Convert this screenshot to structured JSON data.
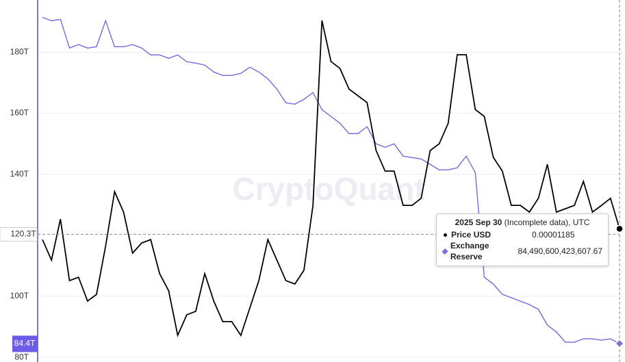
{
  "chart_data": {
    "type": "line",
    "watermark": "CryptoQuant",
    "ylim": [
      78.9,
      197.1
    ],
    "yticks": [
      {
        "value": 80,
        "label": "80T"
      },
      {
        "value": 100,
        "label": "100T"
      },
      {
        "value": 140,
        "label": "140T"
      },
      {
        "value": 160,
        "label": "160T"
      },
      {
        "value": 180,
        "label": "180T"
      }
    ],
    "y2lim": [
      6e-06,
      2.2e-05
    ],
    "grid": true,
    "crosshair_y": {
      "value": 120.3,
      "label": "120.3T"
    },
    "last_y": {
      "value": 84.4,
      "label": "84.4T"
    },
    "tooltip": {
      "date": "2025 Sep 30",
      "note": "(Incomplete data), UTC"
    },
    "series": [
      {
        "name": "Price USD",
        "color": "#000000",
        "axis": "y2",
        "values": [
          1.137e-05,
          1.046e-05,
          1.228e-05,
          9.55e-06,
          9.7e-06,
          8.64e-06,
          8.94e-06,
          1.107e-05,
          1.35e-05,
          1.259e-05,
          1.077e-05,
          1.122e-05,
          1.137e-05,
          9.86e-06,
          9.1e-06,
          7.12e-06,
          8.03e-06,
          8.19e-06,
          9.86e-06,
          8.64e-06,
          7.73e-06,
          7.73e-06,
          7.12e-06,
          8.34e-06,
          9.55e-06,
          1.137e-05,
          1.046e-05,
          9.55e-06,
          9.4e-06,
          1.001e-05,
          1.289e-05,
          2.109e-05,
          1.927e-05,
          1.896e-05,
          1.805e-05,
          1.775e-05,
          1.745e-05,
          1.532e-05,
          1.441e-05,
          1.441e-05,
          1.289e-05,
          1.289e-05,
          1.32e-05,
          1.532e-05,
          1.562e-05,
          1.653e-05,
          1.957e-05,
          1.957e-05,
          1.714e-05,
          1.684e-05,
          1.502e-05,
          1.441e-05,
          1.289e-05,
          1.289e-05,
          1.259e-05,
          1.32e-05,
          1.471e-05,
          1.259e-05,
          1.274e-05,
          1.289e-05,
          1.395e-05,
          1.259e-05,
          1.289e-05,
          1.32e-05,
          1.185e-05
        ]
      },
      {
        "name": "Exchange Reserve",
        "color": "#7f6fe3",
        "values": [
          191.43,
          190.31,
          190.76,
          181.35,
          182.47,
          181.35,
          181.79,
          190.31,
          181.79,
          181.79,
          182.47,
          181.35,
          179.1,
          179.1,
          177.98,
          179.1,
          176.86,
          176.41,
          175.74,
          173.5,
          172.38,
          172.38,
          173.05,
          175.07,
          173.5,
          171.26,
          167.89,
          163.41,
          162.96,
          164.53,
          166.77,
          161.17,
          158.93,
          156.68,
          153.32,
          153.32,
          155.56,
          149.96,
          148.84,
          149.96,
          145.92,
          145.47,
          145.03,
          143.23,
          141.44,
          141.44,
          142.11,
          145.92,
          140.54,
          106.24,
          104.0,
          100.63,
          99.51,
          98.39,
          97.27,
          95.7,
          90.54,
          88.3,
          84.93,
          84.93,
          86.05,
          86.05,
          85.61,
          86.05,
          84.49060042360767
        ],
        "value_labels": [
          null,
          null,
          null,
          null,
          null,
          null,
          null,
          null,
          null,
          null,
          null,
          null,
          null,
          null,
          null,
          null,
          null,
          null,
          null,
          null,
          null,
          null,
          null,
          null,
          null,
          null,
          null,
          null,
          null,
          null,
          null,
          null,
          null,
          null,
          null,
          null,
          null,
          null,
          null,
          null,
          null,
          null,
          null,
          null,
          null,
          null,
          null,
          null,
          null,
          null,
          null,
          null,
          null,
          null,
          null,
          null,
          null,
          null,
          null,
          null,
          null,
          null,
          null,
          null,
          "84,490,600,423,607.67"
        ]
      }
    ]
  }
}
